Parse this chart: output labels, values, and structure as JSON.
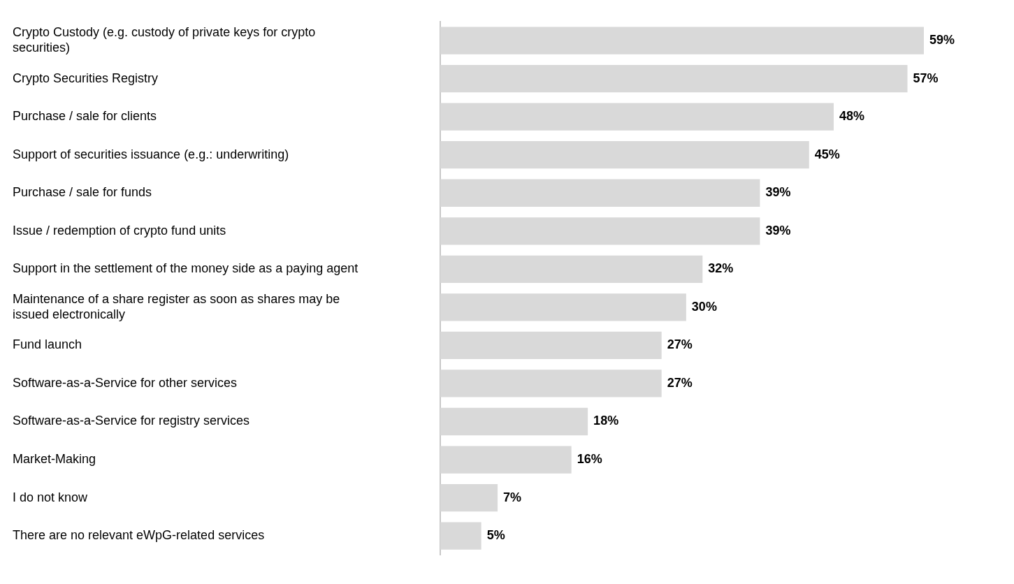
{
  "chart_data": {
    "type": "bar",
    "orientation": "horizontal",
    "categories": [
      "Crypto Custody (e.g. custody of private keys for crypto securities)",
      "Crypto Securities Registry",
      "Purchase / sale for clients",
      "Support of securities issuance (e.g.: underwriting)",
      "Purchase / sale for funds",
      "Issue / redemption of crypto fund units",
      "Support in the settlement of the money side as a paying agent",
      "Maintenance of a share register as soon as shares may be issued electronically",
      "Fund launch",
      "Software-as-a-Service for other services",
      "Software-as-a-Service for registry services",
      "Market-Making",
      "I do not know",
      "There are no relevant eWpG-related services"
    ],
    "values": [
      59,
      57,
      48,
      45,
      39,
      39,
      32,
      30,
      27,
      27,
      18,
      16,
      7,
      5
    ],
    "value_labels": [
      "59%",
      "57%",
      "48%",
      "45%",
      "39%",
      "39%",
      "32%",
      "30%",
      "27%",
      "27%",
      "18%",
      "16%",
      "7%",
      "5%"
    ],
    "color": "#d9d9d9",
    "legend": false,
    "tick_labels": "y"
  }
}
